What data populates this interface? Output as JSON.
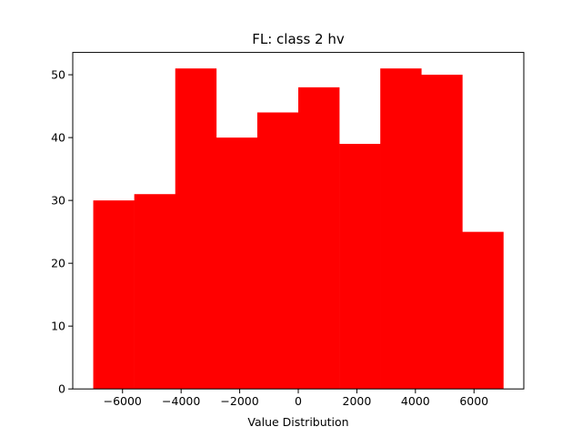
{
  "chart_data": {
    "type": "bar",
    "title": "FL: class 2 hv",
    "xlabel": "Value Distribution",
    "ylabel": "",
    "bin_edges": [
      -7000,
      -5600,
      -4200,
      -2800,
      -1400,
      0,
      1400,
      2800,
      4200,
      5600,
      7000
    ],
    "values": [
      30,
      31,
      51,
      40,
      44,
      48,
      39,
      51,
      50,
      25
    ],
    "xlim": [
      -7700,
      7700
    ],
    "ylim": [
      0,
      53.55
    ],
    "xticks": [
      -6000,
      -4000,
      -2000,
      0,
      2000,
      4000,
      6000
    ],
    "xtick_labels": [
      "−6000",
      "−4000",
      "−2000",
      "0",
      "2000",
      "4000",
      "6000"
    ],
    "yticks": [
      0,
      10,
      20,
      30,
      40,
      50
    ],
    "ytick_labels": [
      "0",
      "10",
      "20",
      "30",
      "40",
      "50"
    ],
    "bar_color": "#ff0000",
    "grid": false,
    "legend": "none"
  }
}
